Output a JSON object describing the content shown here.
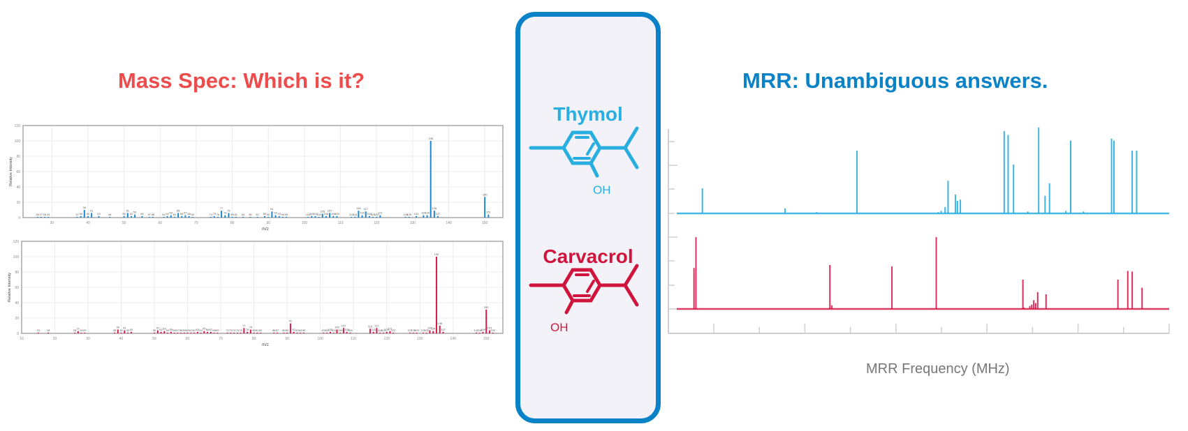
{
  "titles": {
    "mass_spec": "Mass Spec: Which is it?",
    "mrr": "MRR: Unambiguous answers."
  },
  "molecules": {
    "thymol": {
      "name": "Thymol",
      "oh_label": "OH",
      "color": "#28aee0"
    },
    "carvacrol": {
      "name": "Carvacrol",
      "oh_label": "OH",
      "color": "#d0143c"
    }
  },
  "colors": {
    "ms_title": "#ee4c4c",
    "mrr_title": "#0a82c8",
    "panel_border": "#0a82c8",
    "thymol": "#28aee0",
    "carvacrol": "#d0143c"
  },
  "mrr_axis": {
    "xlabel": "MRR Frequency (MHz)"
  },
  "chart_data": [
    {
      "id": "ms_thymol",
      "type": "bar",
      "title": "",
      "xlabel": "m/z",
      "ylabel": "Relative Intensity",
      "xlim": [
        22,
        155
      ],
      "ylim": [
        0,
        120
      ],
      "xticks": [
        30,
        40,
        50,
        60,
        70,
        80,
        90,
        100,
        110,
        120,
        130,
        140,
        150
      ],
      "yticks": [
        0,
        20,
        40,
        60,
        80,
        100,
        120
      ],
      "grid": true,
      "color": "#1a87d0",
      "x": [
        26,
        27,
        28,
        29,
        37,
        38,
        39,
        40,
        41,
        43,
        46,
        50,
        51,
        52,
        53,
        55,
        57,
        58,
        61,
        62,
        63,
        64,
        65,
        66,
        67,
        68,
        69,
        74,
        75,
        76,
        77,
        78,
        79,
        80,
        81,
        83,
        85,
        87,
        89,
        90,
        91,
        92,
        93,
        94,
        95,
        101,
        102,
        103,
        104,
        105,
        106,
        107,
        108,
        109,
        113,
        114,
        115,
        116,
        117,
        118,
        119,
        120,
        121,
        128,
        129,
        131,
        133,
        134,
        135,
        136,
        137,
        150,
        151
      ],
      "values": [
        1,
        1,
        1,
        1,
        1,
        2,
        10,
        2,
        6,
        2,
        1,
        2,
        6,
        2,
        4,
        2,
        1,
        1,
        1,
        2,
        3,
        1,
        6,
        2,
        3,
        2,
        1,
        1,
        2,
        1,
        9,
        3,
        6,
        1,
        1,
        1,
        1,
        1,
        2,
        1,
        8,
        3,
        2,
        1,
        1,
        1,
        2,
        2,
        1,
        5,
        2,
        6,
        2,
        2,
        1,
        1,
        9,
        3,
        8,
        2,
        1,
        1,
        3,
        1,
        1,
        2,
        3,
        3,
        100,
        9,
        2,
        27,
        4
      ]
    },
    {
      "id": "ms_carvacrol",
      "type": "bar",
      "title": "",
      "xlabel": "m/z",
      "ylabel": "Relative Intensity",
      "xlim": [
        10,
        155
      ],
      "ylim": [
        0,
        120
      ],
      "xticks": [
        10,
        20,
        30,
        40,
        50,
        60,
        70,
        80,
        90,
        100,
        110,
        120,
        130,
        140,
        150
      ],
      "yticks": [
        0,
        20,
        40,
        60,
        80,
        100,
        120
      ],
      "grid": true,
      "color": "#d8194a",
      "x": [
        15,
        18,
        26,
        27,
        28,
        29,
        38,
        39,
        40,
        41,
        42,
        43,
        50,
        51,
        52,
        53,
        54,
        55,
        56,
        57,
        58,
        59,
        60,
        61,
        62,
        63,
        64,
        65,
        66,
        67,
        68,
        69,
        72,
        73,
        74,
        75,
        76,
        77,
        78,
        79,
        80,
        81,
        82,
        86,
        87,
        89,
        90,
        91,
        92,
        93,
        94,
        95,
        101,
        102,
        103,
        104,
        105,
        106,
        107,
        108,
        109,
        115,
        116,
        117,
        118,
        119,
        120,
        121,
        122,
        127,
        128,
        129,
        131,
        132,
        133,
        134,
        135,
        136,
        137,
        147,
        148,
        149,
        150,
        151,
        152
      ],
      "values": [
        1,
        1,
        1,
        3,
        1,
        1,
        1,
        5,
        1,
        4,
        1,
        2,
        1,
        4,
        2,
        3,
        1,
        2,
        1,
        1,
        1,
        1,
        1,
        1,
        1,
        2,
        1,
        3,
        2,
        2,
        1,
        1,
        1,
        1,
        1,
        1,
        1,
        7,
        2,
        5,
        1,
        1,
        1,
        1,
        1,
        1,
        1,
        13,
        2,
        1,
        1,
        1,
        1,
        1,
        2,
        1,
        5,
        1,
        7,
        2,
        1,
        6,
        2,
        7,
        1,
        1,
        2,
        3,
        1,
        1,
        1,
        1,
        1,
        1,
        4,
        3,
        100,
        10,
        2,
        1,
        1,
        2,
        31,
        4,
        1
      ]
    },
    {
      "id": "mrr",
      "type": "bar",
      "title": "",
      "xlabel": "MRR Frequency (MHz)",
      "ylabel": "",
      "xlim": [
        0,
        1
      ],
      "grid": false,
      "x_tick_count": 11,
      "series": [
        {
          "name": "Thymol",
          "color": "#28aee0",
          "x": [
            0.052,
            0.22,
            0.284,
            0.366,
            0.531,
            0.537,
            0.545,
            0.551,
            0.566,
            0.57,
            0.576,
            0.665,
            0.673,
            0.684,
            0.713,
            0.735,
            0.748,
            0.757,
            0.79,
            0.8,
            0.826,
            0.883,
            0.888,
            0.925,
            0.934
          ],
          "values": [
            0.4,
            0.08,
            0.02,
            1.0,
            0.02,
            0.04,
            0.1,
            0.52,
            0.3,
            0.2,
            0.22,
            1.31,
            1.25,
            0.78,
            0.03,
            1.37,
            0.28,
            0.48,
            0.04,
            1.16,
            0.03,
            1.19,
            1.16,
            1.0,
            1.0
          ]
        },
        {
          "name": "Carvacrol",
          "color": "#d8194a",
          "x": [
            0.035,
            0.039,
            0.311,
            0.315,
            0.437,
            0.527,
            0.703,
            0.705,
            0.717,
            0.721,
            0.725,
            0.729,
            0.733,
            0.75,
            0.896,
            0.916,
            0.925,
            0.945
          ],
          "values": [
            0.56,
            0.98,
            0.6,
            0.05,
            0.58,
            0.98,
            0.4,
            0.02,
            0.04,
            0.06,
            0.12,
            0.08,
            0.23,
            0.2,
            0.4,
            0.52,
            0.51,
            0.29
          ]
        }
      ]
    }
  ]
}
